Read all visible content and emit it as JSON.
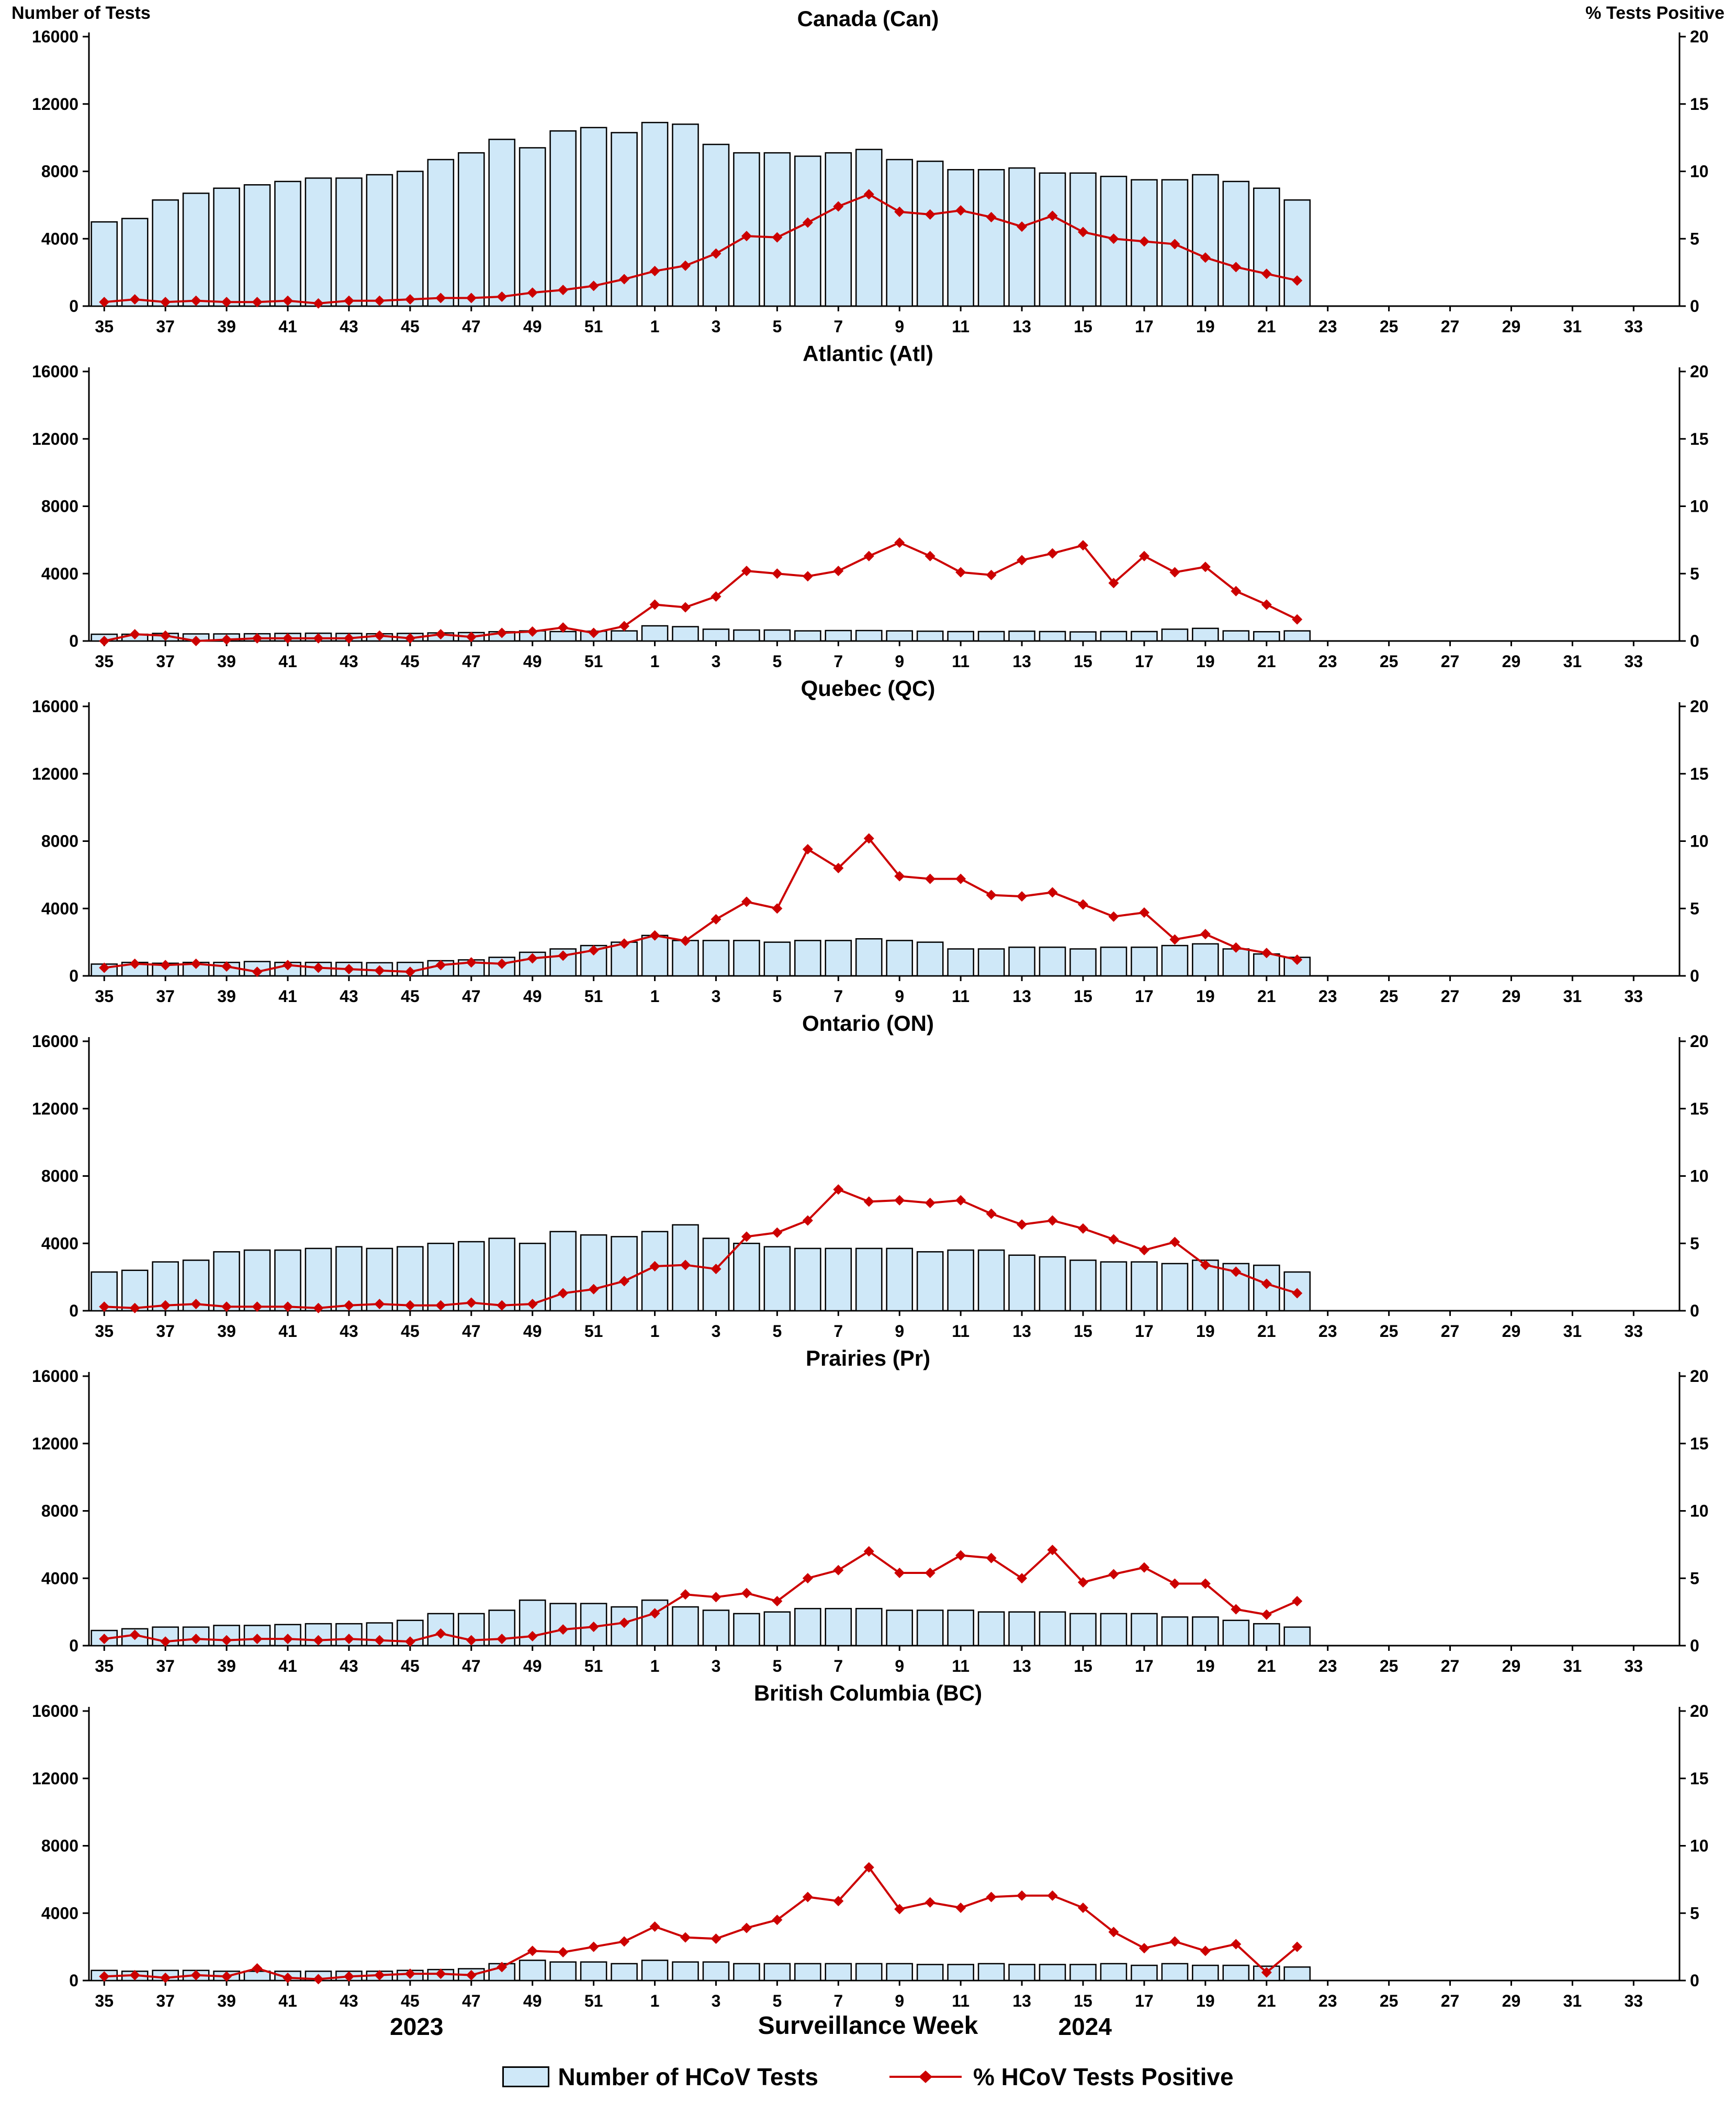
{
  "page": {
    "left_axis_title": "Number of Tests",
    "right_axis_title": "% Tests Positive",
    "x_axis_title": "Surveillance Week",
    "year_left": "2023",
    "year_right": "2024",
    "legend": {
      "bars": "Number of HCoV Tests",
      "line": "% HCoV Tests Positive"
    }
  },
  "colors": {
    "bar_fill": "#cfe8f8",
    "bar_stroke": "#000000",
    "line": "#cc0000",
    "axis": "#000000"
  },
  "chart_data": {
    "type": "bar",
    "subtype": "combo-bar-line-small-multiples",
    "x_axis": {
      "label": "Surveillance Week",
      "tick_labels": [
        35,
        37,
        39,
        41,
        43,
        45,
        47,
        49,
        51,
        1,
        3,
        5,
        7,
        9,
        11,
        13,
        15,
        17,
        19,
        21,
        23,
        25,
        27,
        29,
        31,
        33
      ],
      "year_markers": [
        "2023",
        "2024"
      ]
    },
    "left_axis": {
      "label": "Number of Tests",
      "ticks": [
        0,
        4000,
        8000,
        12000,
        16000
      ],
      "max": 16000
    },
    "right_axis": {
      "label": "% Tests Positive",
      "ticks": [
        0,
        5,
        10,
        15,
        20
      ],
      "max": 20
    },
    "legend": [
      "Number of HCoV Tests",
      "% HCoV Tests Positive"
    ],
    "x_weeks": [
      35,
      36,
      37,
      38,
      39,
      40,
      41,
      42,
      43,
      44,
      45,
      46,
      47,
      48,
      49,
      50,
      51,
      52,
      1,
      2,
      3,
      4,
      5,
      6,
      7,
      8,
      9,
      10,
      11,
      12,
      13,
      14,
      15,
      16,
      17,
      18,
      19,
      20,
      21,
      22
    ],
    "panels": [
      {
        "title": "Canada (Can)",
        "tests": [
          5000,
          5200,
          6300,
          6700,
          7000,
          7200,
          7400,
          7600,
          7600,
          7800,
          8000,
          8700,
          9100,
          9900,
          9400,
          10400,
          10600,
          10300,
          10900,
          10800,
          9600,
          9100,
          9100,
          8900,
          9100,
          9300,
          8700,
          8600,
          8100,
          8100,
          8200,
          7900,
          7900,
          7700,
          7500,
          7500,
          7800,
          7400,
          7000,
          6300
        ],
        "pct_positive": [
          0.3,
          0.5,
          0.3,
          0.4,
          0.3,
          0.3,
          0.4,
          0.2,
          0.4,
          0.4,
          0.5,
          0.6,
          0.6,
          0.7,
          1.0,
          1.2,
          1.5,
          2.0,
          2.6,
          3.0,
          3.9,
          5.2,
          5.1,
          6.2,
          7.4,
          8.3,
          7.0,
          6.8,
          7.1,
          6.6,
          5.9,
          6.7,
          5.5,
          5.0,
          4.8,
          4.6,
          3.6,
          2.9,
          2.4,
          1.9
        ]
      },
      {
        "title": "Atlantic (Atl)",
        "tests": [
          400,
          400,
          450,
          420,
          420,
          430,
          450,
          460,
          450,
          430,
          450,
          480,
          500,
          550,
          600,
          560,
          580,
          600,
          900,
          850,
          700,
          650,
          650,
          600,
          620,
          620,
          600,
          580,
          560,
          560,
          580,
          560,
          540,
          560,
          560,
          700,
          750,
          600,
          550,
          600
        ],
        "pct_positive": [
          0.0,
          0.5,
          0.4,
          0.0,
          0.1,
          0.2,
          0.2,
          0.2,
          0.2,
          0.4,
          0.2,
          0.5,
          0.3,
          0.6,
          0.7,
          1.0,
          0.6,
          1.1,
          2.7,
          2.5,
          3.3,
          5.2,
          5.0,
          4.8,
          5.2,
          6.3,
          7.3,
          6.3,
          5.1,
          4.9,
          6.0,
          6.5,
          7.1,
          4.3,
          6.3,
          5.1,
          5.5,
          3.7,
          2.7,
          1.6
        ]
      },
      {
        "title": "Quebec (QC)",
        "tests": [
          700,
          800,
          750,
          800,
          800,
          850,
          800,
          800,
          800,
          780,
          800,
          900,
          950,
          1100,
          1400,
          1600,
          1800,
          2000,
          2400,
          2100,
          2100,
          2100,
          2000,
          2100,
          2100,
          2200,
          2100,
          2000,
          1600,
          1600,
          1700,
          1700,
          1600,
          1700,
          1700,
          1800,
          1900,
          1600,
          1300,
          1100
        ],
        "pct_positive": [
          0.6,
          0.9,
          0.8,
          0.9,
          0.7,
          0.3,
          0.8,
          0.6,
          0.5,
          0.4,
          0.3,
          0.8,
          1.0,
          0.9,
          1.3,
          1.5,
          1.9,
          2.4,
          3.0,
          2.6,
          4.2,
          5.5,
          5.0,
          9.4,
          8.0,
          10.2,
          7.4,
          7.2,
          7.2,
          6.0,
          5.9,
          6.2,
          5.3,
          4.4,
          4.7,
          2.7,
          3.1,
          2.1,
          1.7,
          1.2
        ]
      },
      {
        "title": "Ontario (ON)",
        "tests": [
          2300,
          2400,
          2900,
          3000,
          3500,
          3600,
          3600,
          3700,
          3800,
          3700,
          3800,
          4000,
          4100,
          4300,
          4000,
          4700,
          4500,
          4400,
          4700,
          5100,
          4300,
          4000,
          3800,
          3700,
          3700,
          3700,
          3700,
          3500,
          3600,
          3600,
          3300,
          3200,
          3000,
          2900,
          2900,
          2800,
          3000,
          2800,
          2700,
          2300
        ],
        "pct_positive": [
          0.3,
          0.2,
          0.4,
          0.5,
          0.3,
          0.3,
          0.3,
          0.2,
          0.4,
          0.5,
          0.4,
          0.4,
          0.6,
          0.4,
          0.5,
          1.3,
          1.6,
          2.2,
          3.3,
          3.4,
          3.1,
          5.5,
          5.8,
          6.7,
          9.0,
          8.1,
          8.2,
          8.0,
          8.2,
          7.2,
          6.4,
          6.7,
          6.1,
          5.3,
          4.5,
          5.1,
          3.4,
          2.9,
          2.0,
          1.3
        ]
      },
      {
        "title": "Prairies (Pr)",
        "tests": [
          900,
          1000,
          1100,
          1100,
          1200,
          1200,
          1250,
          1300,
          1300,
          1350,
          1500,
          1900,
          1900,
          2100,
          2700,
          2500,
          2500,
          2300,
          2700,
          2300,
          2100,
          1900,
          2000,
          2200,
          2200,
          2200,
          2100,
          2100,
          2100,
          2000,
          2000,
          2000,
          1900,
          1900,
          1900,
          1700,
          1700,
          1500,
          1300,
          1100
        ],
        "pct_positive": [
          0.5,
          0.8,
          0.3,
          0.5,
          0.4,
          0.5,
          0.5,
          0.4,
          0.5,
          0.4,
          0.3,
          0.9,
          0.4,
          0.5,
          0.7,
          1.2,
          1.4,
          1.7,
          2.4,
          3.8,
          3.6,
          3.9,
          3.3,
          5.0,
          5.6,
          7.0,
          5.4,
          5.4,
          6.7,
          6.5,
          5.0,
          7.1,
          4.7,
          5.3,
          5.8,
          4.6,
          4.6,
          2.7,
          2.3,
          3.3
        ]
      },
      {
        "title": "British Columbia (BC)",
        "tests": [
          600,
          550,
          600,
          600,
          550,
          550,
          550,
          550,
          550,
          550,
          600,
          650,
          700,
          1000,
          1200,
          1100,
          1100,
          1000,
          1200,
          1100,
          1100,
          1000,
          1000,
          1000,
          1000,
          1000,
          1000,
          950,
          950,
          1000,
          950,
          950,
          950,
          1000,
          900,
          1000,
          900,
          900,
          850,
          800
        ],
        "pct_positive": [
          0.3,
          0.4,
          0.2,
          0.4,
          0.3,
          0.9,
          0.2,
          0.1,
          0.3,
          0.4,
          0.5,
          0.5,
          0.4,
          1.0,
          2.2,
          2.1,
          2.5,
          2.9,
          4.0,
          3.2,
          3.1,
          3.9,
          4.5,
          6.2,
          5.9,
          8.4,
          5.3,
          5.8,
          5.4,
          6.2,
          6.3,
          6.3,
          5.4,
          3.6,
          2.4,
          2.9,
          2.2,
          2.7,
          0.6,
          2.5
        ]
      }
    ]
  }
}
